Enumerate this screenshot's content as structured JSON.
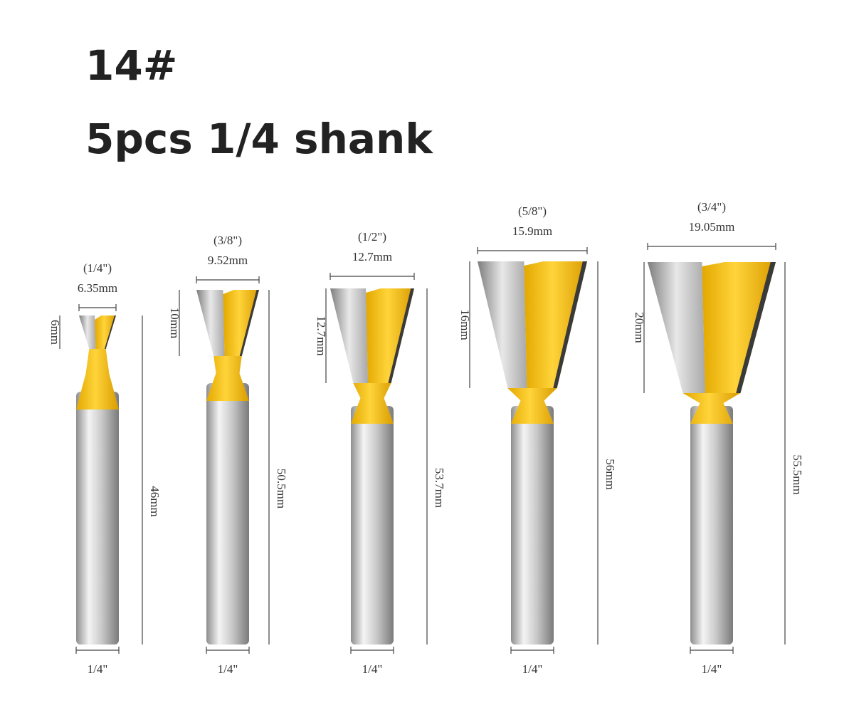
{
  "header": {
    "code": "14#",
    "subtitle": "5pcs 1/4 shank"
  },
  "bits": [
    {
      "inch": "(1/4\")",
      "diameter": "6.35mm",
      "cut_height": "6mm",
      "length": "46mm",
      "shank": "1/4\""
    },
    {
      "inch": "(3/8\")",
      "diameter": "9.52mm",
      "cut_height": "10mm",
      "length": "50.5mm",
      "shank": "1/4\""
    },
    {
      "inch": "(1/2\")",
      "diameter": "12.7mm",
      "cut_height": "12.7mm",
      "length": "53.7mm",
      "shank": "1/4\""
    },
    {
      "inch": "(5/8\")",
      "diameter": "15.9mm",
      "cut_height": "16mm",
      "length": "56mm",
      "shank": "1/4\""
    },
    {
      "inch": "(3/4\")",
      "diameter": "19.05mm",
      "cut_height": "20mm",
      "length": "55.5mm",
      "shank": "1/4\""
    }
  ]
}
